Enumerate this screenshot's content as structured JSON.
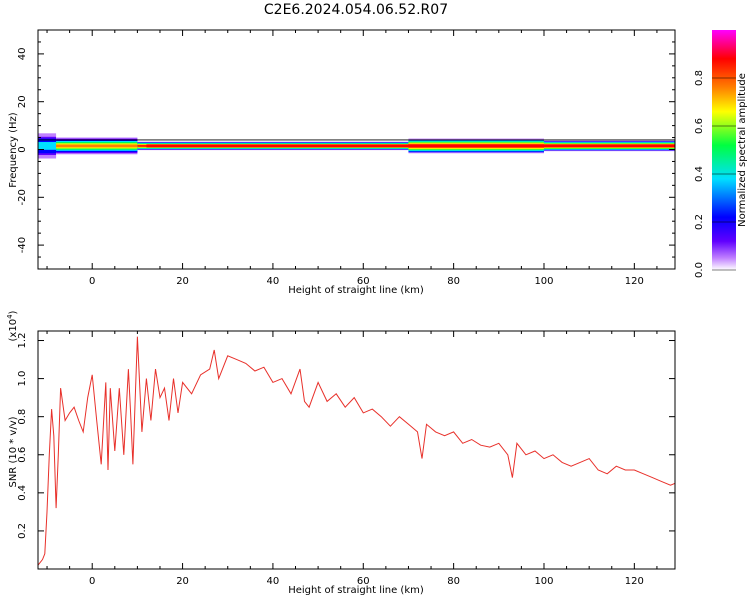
{
  "title": "C2E6.2024.054.06.52.R07",
  "chart_data": [
    {
      "type": "heatmap",
      "xlabel": "Height of straight line (km)",
      "ylabel": "Frequency (Hz)",
      "xlim": [
        -12,
        129
      ],
      "ylim": [
        -50,
        50
      ],
      "xticks": [
        0,
        20,
        40,
        60,
        80,
        100,
        120
      ],
      "yticks": [
        -40,
        -20,
        0,
        20,
        40
      ],
      "ytick_labels": [
        "-40",
        "-20",
        "0",
        "20",
        "40"
      ],
      "colorbar": {
        "label": "Normalized spectral amplitude",
        "range": [
          0,
          1
        ],
        "ticks": [
          0.0,
          0.2,
          0.4,
          0.6,
          0.8
        ],
        "tick_labels": [
          "0.0",
          "0.2",
          "0.4",
          "0.6",
          "0.8"
        ],
        "colors": [
          "#ffffff",
          "#c080ff",
          "#6000ff",
          "#0000ff",
          "#00e0ff",
          "#00ff40",
          "#ffff00",
          "#ff8000",
          "#ff0000",
          "#ff00ff"
        ]
      },
      "band": {
        "center_hz": 1.5,
        "segments": [
          {
            "x": [
              -12,
              -8
            ],
            "peak": 0.45,
            "halfwidth_hz": 6
          },
          {
            "x": [
              -8,
              10
            ],
            "peak": 0.75,
            "halfwidth_hz": 4
          },
          {
            "x": [
              10,
              70
            ],
            "peak": 0.9,
            "halfwidth_hz": 2
          },
          {
            "x": [
              70,
              100
            ],
            "peak": 0.9,
            "halfwidth_hz": 3.5
          },
          {
            "x": [
              100,
              129
            ],
            "peak": 0.9,
            "halfwidth_hz": 2.5
          }
        ]
      },
      "grid": false
    },
    {
      "type": "line",
      "xlabel": "Height of straight line (km)",
      "ylabel": "SNR (10 * v/v)",
      "y_multiplier_label": "(x10",
      "y_multiplier_exp": "4",
      "xlim": [
        -12,
        129
      ],
      "ylim": [
        0,
        1.25
      ],
      "xticks": [
        0,
        20,
        40,
        60,
        80,
        100,
        120
      ],
      "yticks": [
        0.2,
        0.4,
        0.6,
        0.8,
        1.0,
        1.2
      ],
      "ytick_labels": [
        "0.2",
        "0.4",
        "0.6",
        "0.8",
        "1.0",
        "1.2"
      ],
      "series": [
        {
          "color": "#e8302a",
          "x": [
            -12,
            -11,
            -10.5,
            -10,
            -9.5,
            -9,
            -8.5,
            -8,
            -7.5,
            -7,
            -6,
            -5,
            -4,
            -3,
            -2,
            -1,
            0,
            1,
            2,
            3,
            3.5,
            4,
            5,
            6,
            7,
            8,
            8.5,
            9,
            10,
            11,
            12,
            13,
            14,
            15,
            16,
            17,
            18,
            19,
            20,
            22,
            24,
            26,
            27,
            28,
            30,
            32,
            34,
            36,
            38,
            40,
            42,
            44,
            46,
            47,
            48,
            50,
            52,
            54,
            56,
            58,
            60,
            62,
            64,
            66,
            68,
            70,
            72,
            73,
            74,
            76,
            78,
            80,
            82,
            84,
            86,
            88,
            90,
            92,
            93,
            94,
            96,
            98,
            100,
            102,
            104,
            106,
            108,
            110,
            112,
            114,
            116,
            118,
            120,
            122,
            124,
            126,
            128,
            129
          ],
          "y": [
            0.02,
            0.05,
            0.08,
            0.3,
            0.6,
            0.84,
            0.7,
            0.32,
            0.6,
            0.95,
            0.78,
            0.82,
            0.85,
            0.78,
            0.72,
            0.9,
            1.02,
            0.78,
            0.55,
            0.98,
            0.52,
            0.95,
            0.62,
            0.95,
            0.6,
            1.05,
            0.82,
            0.55,
            1.22,
            0.72,
            1.0,
            0.78,
            1.05,
            0.9,
            0.95,
            0.78,
            1.0,
            0.82,
            0.98,
            0.92,
            1.02,
            1.05,
            1.15,
            1.0,
            1.12,
            1.1,
            1.08,
            1.04,
            1.06,
            0.98,
            1.0,
            0.92,
            1.05,
            0.88,
            0.85,
            0.98,
            0.88,
            0.92,
            0.85,
            0.9,
            0.82,
            0.84,
            0.8,
            0.75,
            0.8,
            0.76,
            0.72,
            0.58,
            0.76,
            0.72,
            0.7,
            0.72,
            0.66,
            0.68,
            0.65,
            0.64,
            0.66,
            0.6,
            0.48,
            0.66,
            0.6,
            0.62,
            0.58,
            0.6,
            0.56,
            0.54,
            0.56,
            0.58,
            0.52,
            0.5,
            0.54,
            0.52,
            0.52,
            0.5,
            0.48,
            0.46,
            0.44,
            0.45
          ]
        }
      ],
      "grid": false
    }
  ]
}
